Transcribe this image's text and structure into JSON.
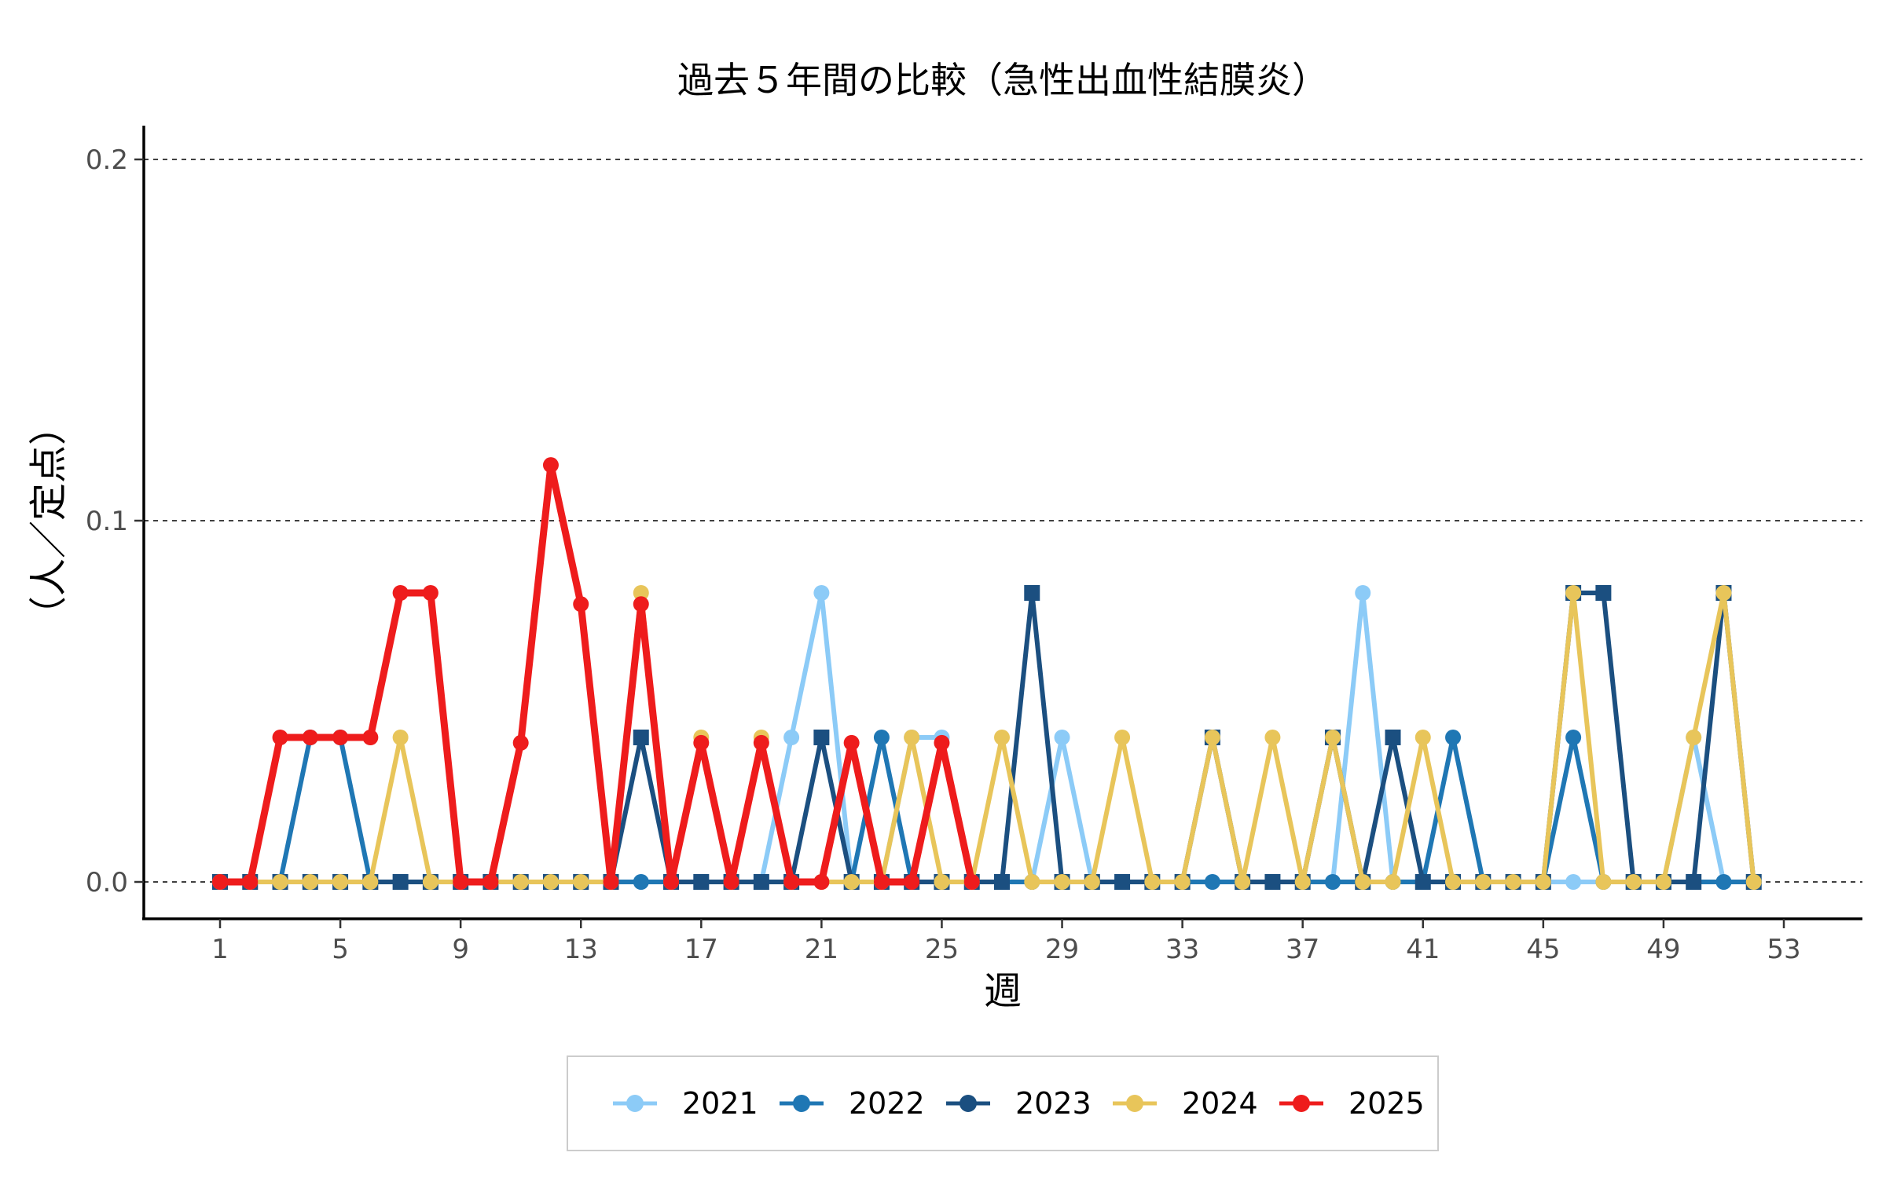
{
  "chart_data": {
    "type": "line",
    "title": "過去５年間の比較（急性出血性結膜炎）",
    "xlabel": "週",
    "ylabel": "（人／定点）",
    "xlim": [
      1,
      53
    ],
    "ylim": [
      0,
      0.2
    ],
    "x_ticks": [
      "1",
      "5",
      "9",
      "13",
      "17",
      "21",
      "25",
      "29",
      "33",
      "37",
      "41",
      "45",
      "49",
      "53"
    ],
    "y_ticks": [
      "0.0",
      "0.1",
      "0.2"
    ],
    "grid": "horizontal dashed",
    "legend_position": "bottom",
    "series": [
      {
        "name": "2021",
        "color": "#8ccbf7",
        "marker": "circle",
        "x": [
          1,
          2,
          3,
          4,
          5,
          6,
          7,
          8,
          9,
          10,
          11,
          12,
          13,
          14,
          15,
          16,
          17,
          18,
          19,
          20,
          21,
          22,
          23,
          24,
          25,
          26,
          27,
          28,
          29,
          30,
          31,
          32,
          33,
          34,
          35,
          36,
          37,
          38,
          39,
          40,
          41,
          42,
          43,
          44,
          45,
          46,
          47,
          48,
          49,
          50,
          51,
          52
        ],
        "values": [
          0,
          0,
          0,
          0,
          0,
          0,
          0,
          0,
          0,
          0,
          0,
          0,
          0,
          0,
          0,
          0,
          0,
          0,
          0,
          0.04,
          0.08,
          0,
          0,
          0.04,
          0.04,
          0,
          0,
          0,
          0.04,
          0,
          0,
          0,
          0,
          0,
          0,
          0,
          0,
          0,
          0.08,
          0,
          0,
          0,
          0,
          0,
          0,
          0,
          0,
          0,
          0,
          0.04,
          0,
          0
        ]
      },
      {
        "name": "2022",
        "color": "#1f77b4",
        "marker": "circle",
        "x": [
          1,
          2,
          3,
          4,
          5,
          6,
          7,
          8,
          9,
          10,
          11,
          12,
          13,
          14,
          15,
          16,
          17,
          18,
          19,
          20,
          21,
          22,
          23,
          24,
          25,
          26,
          27,
          28,
          29,
          30,
          31,
          32,
          33,
          34,
          35,
          36,
          37,
          38,
          39,
          40,
          41,
          42,
          43,
          44,
          45,
          46,
          47,
          48,
          49,
          50,
          51,
          52
        ],
        "values": [
          0,
          0,
          0,
          0.04,
          0.04,
          0,
          0,
          0,
          0,
          0,
          0,
          0,
          0,
          0,
          0,
          0,
          0,
          0,
          0,
          0,
          0,
          0,
          0.04,
          0,
          0,
          0,
          0,
          0,
          0,
          0,
          0,
          0,
          0,
          0,
          0,
          0,
          0,
          0,
          0,
          0,
          0,
          0.04,
          0,
          0,
          0,
          0.04,
          0,
          0,
          0,
          0,
          0,
          0
        ]
      },
      {
        "name": "2023",
        "color": "#1b4f80",
        "marker": "square",
        "x": [
          1,
          2,
          3,
          4,
          5,
          6,
          7,
          8,
          9,
          10,
          11,
          12,
          13,
          14,
          15,
          16,
          17,
          18,
          19,
          20,
          21,
          22,
          23,
          24,
          25,
          26,
          27,
          28,
          29,
          30,
          31,
          32,
          33,
          34,
          35,
          36,
          37,
          38,
          39,
          40,
          41,
          42,
          43,
          44,
          45,
          46,
          47,
          48,
          49,
          50,
          51,
          52
        ],
        "values": [
          0,
          0,
          0,
          0,
          0,
          0,
          0,
          0,
          0,
          0,
          0,
          0,
          0,
          0,
          0.04,
          0,
          0,
          0,
          0,
          0,
          0.04,
          0,
          0,
          0,
          0,
          0,
          0,
          0.08,
          0,
          0,
          0,
          0,
          0,
          0.04,
          0,
          0,
          0,
          0.04,
          0,
          0.04,
          0,
          0,
          0,
          0,
          0,
          0.08,
          0.08,
          0,
          0,
          0,
          0.08,
          0
        ]
      },
      {
        "name": "2024",
        "color": "#e8c55a",
        "marker": "circle",
        "x": [
          1,
          2,
          3,
          4,
          5,
          6,
          7,
          8,
          9,
          10,
          11,
          12,
          13,
          14,
          15,
          16,
          17,
          18,
          19,
          20,
          21,
          22,
          23,
          24,
          25,
          26,
          27,
          28,
          29,
          30,
          31,
          32,
          33,
          34,
          35,
          36,
          37,
          38,
          39,
          40,
          41,
          42,
          43,
          44,
          45,
          46,
          47,
          48,
          49,
          50,
          51,
          52
        ],
        "values": [
          0,
          0,
          0,
          0,
          0,
          0,
          0.04,
          0,
          0,
          0,
          0,
          0,
          0,
          0,
          0.08,
          0,
          0.04,
          0,
          0.04,
          0,
          0,
          0,
          0,
          0.04,
          0,
          0,
          0.04,
          0,
          0,
          0,
          0.04,
          0,
          0,
          0.04,
          0,
          0.04,
          0,
          0.04,
          0,
          0,
          0.04,
          0,
          0,
          0,
          0,
          0.08,
          0,
          0,
          0,
          0.04,
          0.08,
          0
        ]
      },
      {
        "name": "2025",
        "color": "#ee1c1c",
        "marker": "circle",
        "x": [
          1,
          2,
          3,
          4,
          5,
          6,
          7,
          8,
          9,
          10,
          11,
          12,
          13,
          14,
          15,
          16,
          17,
          18,
          19,
          20,
          21,
          22,
          23,
          24,
          25,
          26
        ],
        "values": [
          0,
          0,
          0.04,
          0.04,
          0.04,
          0.04,
          0.08,
          0.08,
          0,
          0,
          0.0385,
          0.1154,
          0.0769,
          0,
          0.0769,
          0,
          0.0385,
          0,
          0.0385,
          0,
          0,
          0.0385,
          0,
          0,
          0.0385,
          0
        ]
      }
    ]
  }
}
